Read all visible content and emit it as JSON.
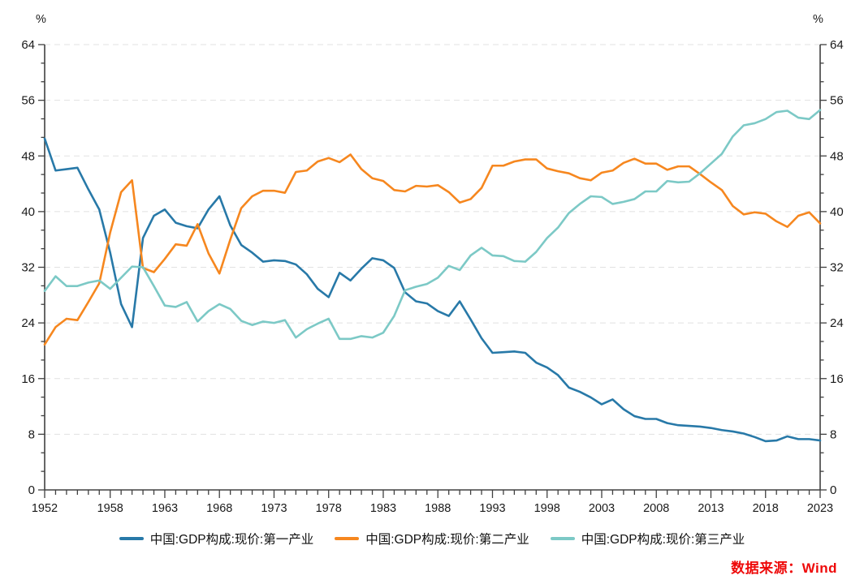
{
  "chart_data": {
    "type": "line",
    "y_unit": "%",
    "y_range": [
      0,
      64
    ],
    "y_ticks": [
      0,
      8,
      16,
      24,
      32,
      40,
      48,
      56,
      64
    ],
    "x_years": {
      "start": 1952,
      "end": 2023,
      "step": 1
    },
    "x_tick_labels": [
      1952,
      1958,
      1963,
      1968,
      1973,
      1978,
      1983,
      1988,
      1993,
      1998,
      2003,
      2008,
      2013,
      2018,
      2023
    ],
    "grid": "horizontal-dashed",
    "legend_position": "bottom-center",
    "series": [
      {
        "id": "primary-industry",
        "name": "中国:GDP构成:现价:第一产业",
        "color": "#2879A8",
        "values": [
          50.5,
          45.9,
          46.1,
          46.3,
          43.2,
          40.3,
          34.1,
          26.7,
          23.4,
          36.2,
          39.4,
          40.3,
          38.4,
          37.9,
          37.6,
          40.3,
          42.2,
          38.0,
          35.2,
          34.1,
          32.8,
          33.0,
          32.9,
          32.4,
          31.0,
          28.9,
          27.7,
          31.2,
          30.1,
          31.8,
          33.3,
          33.0,
          31.9,
          28.4,
          27.1,
          26.8,
          25.7,
          25.0,
          27.1,
          24.5,
          21.8,
          19.7,
          19.8,
          19.9,
          19.7,
          18.3,
          17.6,
          16.5,
          14.7,
          14.1,
          13.3,
          12.3,
          13.0,
          11.6,
          10.6,
          10.2,
          10.2,
          9.6,
          9.3,
          9.2,
          9.1,
          8.9,
          8.6,
          8.4,
          8.1,
          7.6,
          7.0,
          7.1,
          7.7,
          7.3,
          7.3,
          7.1
        ]
      },
      {
        "id": "secondary-industry",
        "name": "中国:GDP构成:现价:第二产业",
        "color": "#F6871F",
        "values": [
          20.9,
          23.4,
          24.6,
          24.4,
          27.0,
          29.7,
          37.0,
          42.8,
          44.5,
          31.9,
          31.3,
          33.2,
          35.3,
          35.1,
          38.2,
          34.0,
          31.1,
          36.0,
          40.5,
          42.2,
          43.0,
          43.0,
          42.7,
          45.7,
          45.9,
          47.2,
          47.7,
          47.1,
          48.2,
          46.1,
          44.8,
          44.4,
          43.1,
          42.9,
          43.7,
          43.6,
          43.8,
          42.8,
          41.3,
          41.8,
          43.4,
          46.6,
          46.6,
          47.2,
          47.5,
          47.5,
          46.2,
          45.8,
          45.5,
          44.8,
          44.5,
          45.6,
          45.9,
          47.0,
          47.6,
          46.9,
          46.9,
          46.0,
          46.5,
          46.5,
          45.4,
          44.2,
          43.1,
          40.8,
          39.6,
          39.9,
          39.7,
          38.6,
          37.8,
          39.4,
          39.9,
          38.3
        ]
      },
      {
        "id": "tertiary-industry",
        "name": "中国:GDP构成:现价:第三产业",
        "color": "#7CC9C6",
        "values": [
          28.6,
          30.7,
          29.3,
          29.3,
          29.8,
          30.1,
          28.9,
          30.5,
          32.1,
          32.0,
          29.3,
          26.5,
          26.3,
          27.0,
          24.2,
          25.7,
          26.7,
          26.0,
          24.3,
          23.7,
          24.2,
          24.0,
          24.4,
          21.9,
          23.1,
          23.9,
          24.6,
          21.7,
          21.7,
          22.1,
          21.9,
          22.6,
          25.0,
          28.7,
          29.2,
          29.6,
          30.5,
          32.2,
          31.6,
          33.7,
          34.8,
          33.7,
          33.6,
          32.9,
          32.8,
          34.2,
          36.2,
          37.7,
          39.8,
          41.1,
          42.2,
          42.1,
          41.1,
          41.4,
          41.8,
          42.9,
          42.9,
          44.4,
          44.2,
          44.3,
          45.5,
          46.9,
          48.3,
          50.8,
          52.4,
          52.7,
          53.3,
          54.3,
          54.5,
          53.5,
          53.3,
          54.6
        ]
      }
    ]
  },
  "source": {
    "text": "数据来源：Wind",
    "color": "#EE0A0A"
  },
  "style_colors": {
    "axis": "#404040",
    "grid": "#E1E1E1",
    "tick_label": "#1A1A1A"
  }
}
